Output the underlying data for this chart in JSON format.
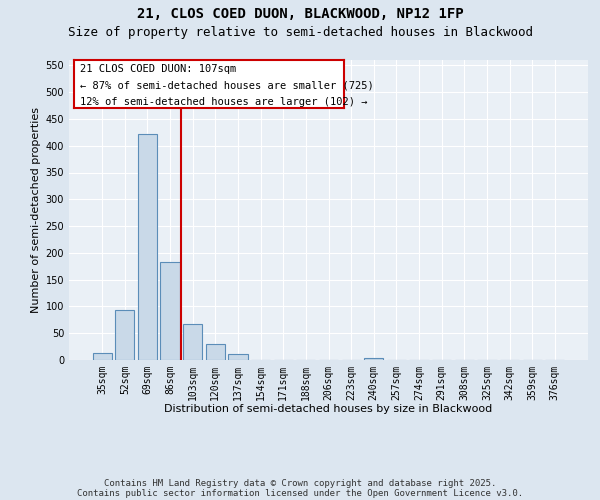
{
  "title_line1": "21, CLOS COED DUON, BLACKWOOD, NP12 1FP",
  "title_line2": "Size of property relative to semi-detached houses in Blackwood",
  "xlabel": "Distribution of semi-detached houses by size in Blackwood",
  "ylabel": "Number of semi-detached properties",
  "categories": [
    "35sqm",
    "52sqm",
    "69sqm",
    "86sqm",
    "103sqm",
    "120sqm",
    "137sqm",
    "154sqm",
    "171sqm",
    "188sqm",
    "206sqm",
    "223sqm",
    "240sqm",
    "257sqm",
    "274sqm",
    "291sqm",
    "308sqm",
    "325sqm",
    "342sqm",
    "359sqm",
    "376sqm"
  ],
  "values": [
    13,
    93,
    422,
    183,
    68,
    30,
    11,
    0,
    0,
    0,
    0,
    0,
    3,
    0,
    0,
    0,
    0,
    0,
    0,
    0,
    0
  ],
  "bar_color": "#c9d9e8",
  "bar_edge_color": "#5b8db8",
  "vline_color": "#cc0000",
  "vline_x": 4.0,
  "annotation_title": "21 CLOS COED DUON: 107sqm",
  "annotation_line2": "← 87% of semi-detached houses are smaller (725)",
  "annotation_line3": "12% of semi-detached houses are larger (102) →",
  "annotation_box_edge_color": "#cc0000",
  "annotation_box_face_color": "#ffffff",
  "ylim": [
    0,
    560
  ],
  "yticks": [
    0,
    50,
    100,
    150,
    200,
    250,
    300,
    350,
    400,
    450,
    500,
    550
  ],
  "footer_line1": "Contains HM Land Registry data © Crown copyright and database right 2025.",
  "footer_line2": "Contains public sector information licensed under the Open Government Licence v3.0.",
  "background_color": "#dce6f0",
  "plot_background_color": "#eaf0f6",
  "grid_color": "#ffffff",
  "title_fontsize": 10,
  "subtitle_fontsize": 9,
  "axis_label_fontsize": 8,
  "tick_fontsize": 7,
  "footer_fontsize": 6.5,
  "annotation_fontsize": 7.5
}
